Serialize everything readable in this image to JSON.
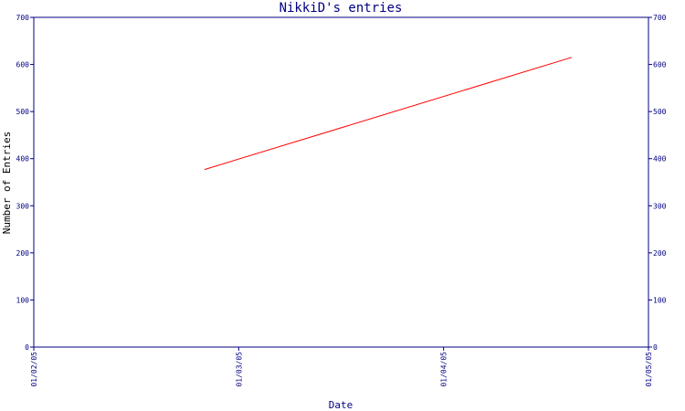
{
  "chart_data": {
    "type": "line",
    "title": "NikkiD's entries",
    "xlabel": "Date",
    "ylabel": "Number of Entries",
    "ylim": [
      0,
      700
    ],
    "y_ticks": [
      "0",
      "100",
      "200",
      "300",
      "400",
      "500",
      "600",
      "700"
    ],
    "x_ticks": [
      "01/02/05",
      "01/03/05",
      "01/04/05",
      "01/05/05"
    ],
    "x_range": [
      "2005-01-02",
      "2005-01-05"
    ],
    "series": [
      {
        "color": "#ff0000",
        "points": [
          {
            "x": "2005-01-02 20:00",
            "y": 377
          },
          {
            "x": "2005-01-04 15:00",
            "y": 615
          }
        ]
      }
    ],
    "grid": false,
    "axis_color": "#000080"
  }
}
